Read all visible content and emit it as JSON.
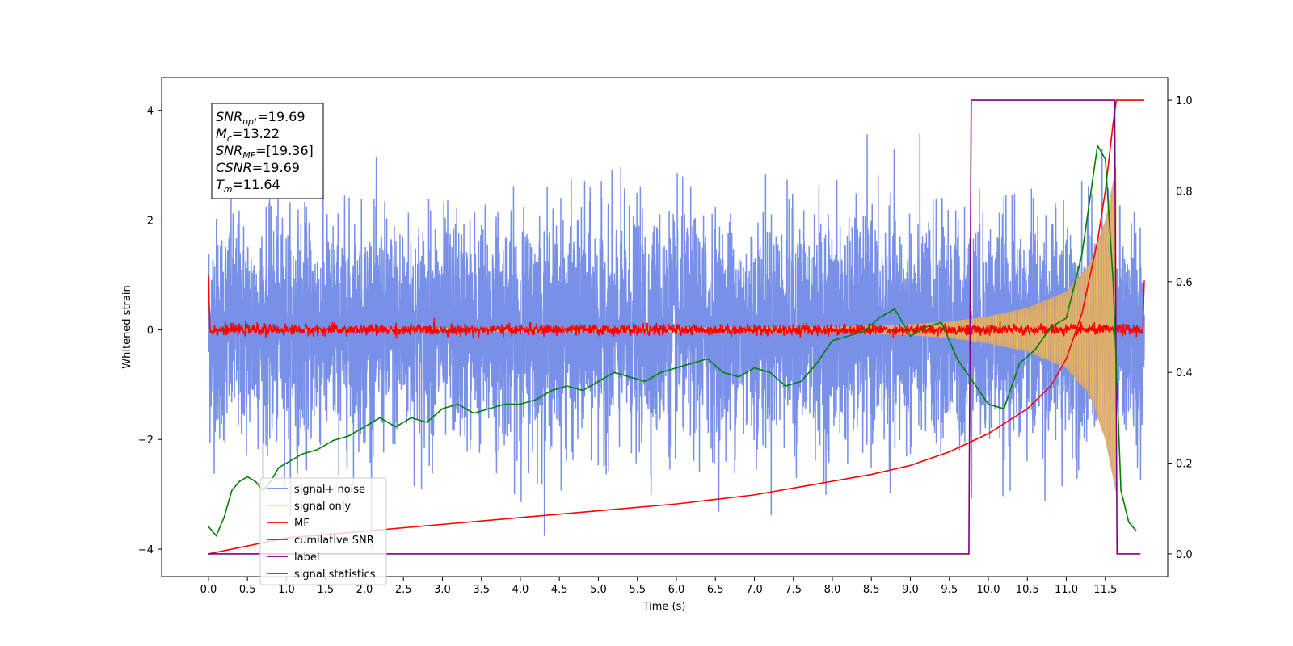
{
  "chart_data": {
    "type": "line",
    "xlabel": "Time (s)",
    "ylabel": "Whitened strain",
    "xlim": [
      -0.6,
      12.3
    ],
    "ylim": [
      -4.5,
      4.6
    ],
    "y2lim": [
      -0.05,
      1.05
    ],
    "x_ticks": [
      "0.0",
      "0.5",
      "1.0",
      "1.5",
      "2.0",
      "2.5",
      "3.0",
      "3.5",
      "4.0",
      "4.5",
      "5.0",
      "5.5",
      "6.0",
      "6.5",
      "7.0",
      "7.5",
      "8.0",
      "8.5",
      "9.0",
      "9.5",
      "10.0",
      "10.5",
      "11.0",
      "11.5"
    ],
    "y_ticks": [
      "4",
      "2",
      "0",
      "−2",
      "−4"
    ],
    "y2_ticks": [
      "1.0",
      "0.8",
      "0.6",
      "0.4",
      "0.2",
      "0.0"
    ],
    "legend_position": "lower-left",
    "annotation": {
      "lines": [
        {
          "base": "SNR",
          "sub": "opt",
          "rest": "=19.69"
        },
        {
          "base": "M",
          "sub": "c",
          "rest": "=13.22"
        },
        {
          "base": "SNR",
          "sub": "MF",
          "rest": "=[19.36]"
        },
        {
          "base": "CSNR",
          "sub": "",
          "rest": "=19.69"
        },
        {
          "base": "T",
          "sub": "m",
          "rest": "=11.64"
        }
      ]
    },
    "series": [
      {
        "name": "signal+ noise",
        "color": "#7890e8",
        "axis": "left",
        "kind": "noise",
        "x_range": [
          0.0,
          12.0
        ],
        "sigma": 1.0,
        "peak_abs": 4.0
      },
      {
        "name": "signal only",
        "color": "#ffc04d",
        "axis": "left",
        "kind": "chirp",
        "x_range": [
          0.0,
          11.64
        ],
        "envelope_x": [
          0.0,
          8.0,
          9.0,
          9.5,
          10.0,
          10.5,
          11.0,
          11.3,
          11.5,
          11.64
        ],
        "envelope_y": [
          0.02,
          0.05,
          0.1,
          0.15,
          0.25,
          0.4,
          0.7,
          1.2,
          2.0,
          3.0
        ]
      },
      {
        "name": "MF",
        "color": "#ff0000",
        "axis": "left",
        "kind": "mf",
        "x_range": [
          0.0,
          12.0
        ],
        "edge_values": [
          1.0,
          0.9
        ],
        "sigma": 0.05
      },
      {
        "name": "cumilative SNR",
        "color": "#ff0000",
        "axis": "right",
        "x": [
          0.0,
          1.0,
          2.0,
          3.0,
          4.0,
          5.0,
          6.0,
          7.0,
          7.5,
          8.0,
          8.5,
          9.0,
          9.5,
          10.0,
          10.5,
          10.8,
          11.0,
          11.2,
          11.4,
          11.5,
          11.6,
          11.64,
          12.0
        ],
        "y": [
          0.0,
          0.035,
          0.05,
          0.065,
          0.08,
          0.095,
          0.11,
          0.13,
          0.145,
          0.16,
          0.175,
          0.195,
          0.225,
          0.265,
          0.32,
          0.37,
          0.43,
          0.53,
          0.69,
          0.8,
          0.95,
          1.0,
          1.0
        ]
      },
      {
        "name": "label",
        "color": "#800080",
        "axis": "right",
        "x": [
          0.0,
          9.75,
          9.78,
          11.62,
          11.65,
          11.95
        ],
        "y": [
          0.0,
          0.0,
          1.0,
          1.0,
          0.0,
          0.0
        ]
      },
      {
        "name": "signal statistics",
        "color": "#008000",
        "axis": "right",
        "x": [
          0.0,
          0.1,
          0.2,
          0.3,
          0.4,
          0.5,
          0.6,
          0.7,
          0.8,
          0.9,
          1.0,
          1.2,
          1.4,
          1.6,
          1.8,
          2.0,
          2.2,
          2.4,
          2.6,
          2.8,
          3.0,
          3.2,
          3.4,
          3.6,
          3.8,
          4.0,
          4.2,
          4.4,
          4.6,
          4.8,
          5.0,
          5.2,
          5.4,
          5.6,
          5.8,
          6.0,
          6.2,
          6.4,
          6.6,
          6.8,
          7.0,
          7.2,
          7.4,
          7.6,
          7.8,
          8.0,
          8.2,
          8.4,
          8.6,
          8.8,
          9.0,
          9.2,
          9.4,
          9.6,
          9.8,
          10.0,
          10.2,
          10.4,
          10.6,
          10.8,
          11.0,
          11.2,
          11.4,
          11.5,
          11.6,
          11.7,
          11.8,
          11.9
        ],
        "y": [
          0.06,
          0.04,
          0.08,
          0.14,
          0.16,
          0.17,
          0.16,
          0.14,
          0.16,
          0.19,
          0.2,
          0.22,
          0.23,
          0.25,
          0.26,
          0.28,
          0.3,
          0.28,
          0.3,
          0.29,
          0.32,
          0.33,
          0.31,
          0.32,
          0.33,
          0.33,
          0.34,
          0.36,
          0.37,
          0.36,
          0.38,
          0.4,
          0.39,
          0.38,
          0.4,
          0.41,
          0.42,
          0.43,
          0.4,
          0.39,
          0.41,
          0.4,
          0.37,
          0.38,
          0.42,
          0.47,
          0.48,
          0.49,
          0.52,
          0.54,
          0.48,
          0.5,
          0.51,
          0.43,
          0.38,
          0.33,
          0.32,
          0.42,
          0.45,
          0.5,
          0.52,
          0.66,
          0.9,
          0.87,
          0.6,
          0.14,
          0.07,
          0.05
        ]
      }
    ]
  }
}
